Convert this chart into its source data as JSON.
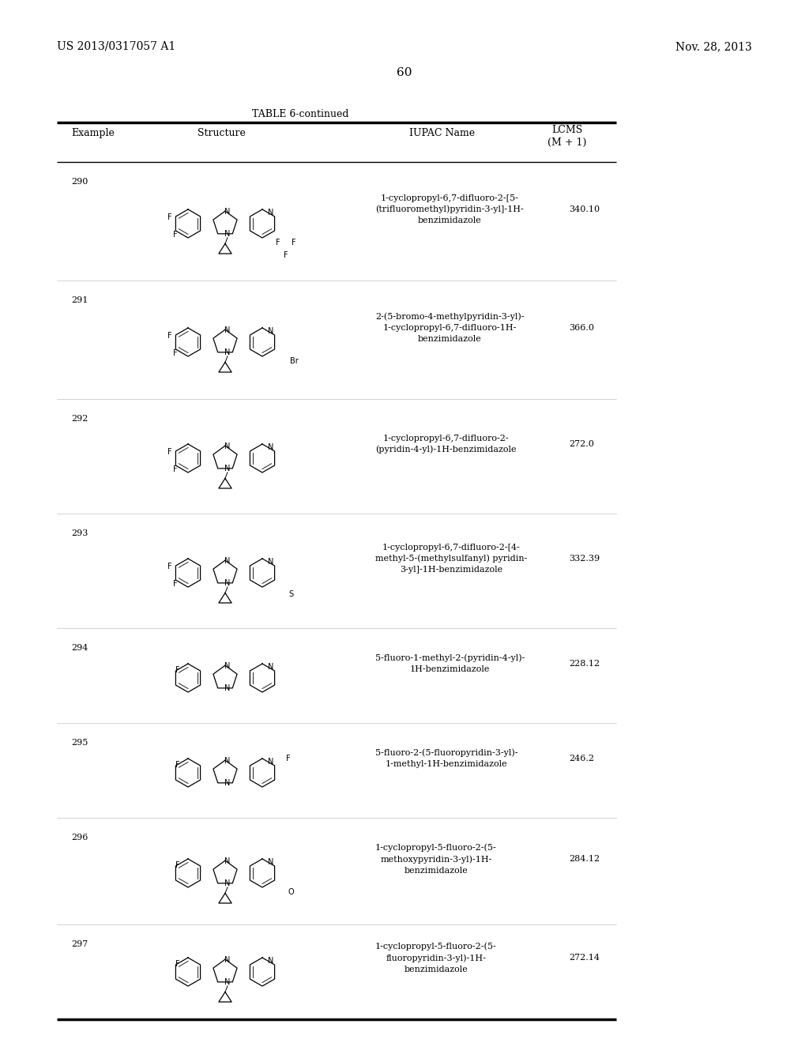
{
  "bg_color": "#ffffff",
  "header_left": "US 2013/0317057 A1",
  "header_right": "Nov. 28, 2013",
  "page_number": "60",
  "table_title": "TABLE 6-continued",
  "col_headers": [
    "Example",
    "Structure",
    "IUPAC Name",
    "LCMS\n(M + 1)"
  ],
  "rows": [
    {
      "example": "290",
      "iupac": "1-cyclopropyl-6,7-difluoro-2-[5-\n(trifluoromethyl)pyridin-3-yl]-1H-\nbenzimidazole",
      "lcms": "340.10"
    },
    {
      "example": "291",
      "iupac": "2-(5-bromo-4-methylpyridin-3-yl)-\n1-cyclopropyl-6,7-difluoro-1H-\nbenzimidazole",
      "lcms": "366.0"
    },
    {
      "example": "292",
      "iupac": "1-cyclopropyl-6,7-difluoro-2-\n(pyridin-4-yl)-1H-benzimidazole",
      "lcms": "272.0"
    },
    {
      "example": "293",
      "iupac": "1-cyclopropyl-6,7-difluoro-2-[4-\nmethyl-5-(methylsulfanyl) pyridin-\n3-yl]-1H-benzimidazole",
      "lcms": "332.39"
    },
    {
      "example": "294",
      "iupac": "5-fluoro-1-methyl-2-(pyridin-4-yl)-\n1H-benzimidazole",
      "lcms": "228.12"
    },
    {
      "example": "295",
      "iupac": "5-fluoro-2-(5-fluoropyridin-3-yl)-\n1-methyl-1H-benzimidazole",
      "lcms": "246.2"
    },
    {
      "example": "296",
      "iupac": "1-cyclopropyl-5-fluoro-2-(5-\nmethoxypyridin-3-yl)-1H-\nbenzimidazole",
      "lcms": "284.12"
    },
    {
      "example": "297",
      "iupac": "1-cyclopropyl-5-fluoro-2-(5-\nfluoropyridin-3-yl)-1H-\nbenzimidazole",
      "lcms": "272.14"
    }
  ],
  "font_size_header": 9,
  "font_size_body": 8,
  "font_size_title": 9,
  "font_size_page": 11,
  "font_size_patent": 10
}
